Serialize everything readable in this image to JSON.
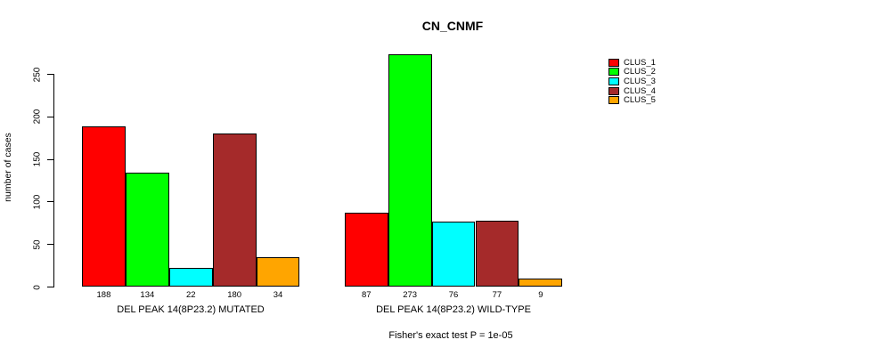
{
  "title": "CN_CNMF",
  "footer": "Fisher's exact test P = 1e-05",
  "chart_data": {
    "type": "bar",
    "title": "CN_CNMF",
    "xlabel": "",
    "ylabel": "number of cases",
    "ylim": [
      0,
      250
    ],
    "yticks": [
      0,
      50,
      100,
      150,
      200,
      250
    ],
    "grid": false,
    "legend_position": "right",
    "bar_values_shown": true,
    "categories": [
      "DEL PEAK 14(8P23.2) MUTATED",
      "DEL PEAK 14(8P23.2) WILD-TYPE"
    ],
    "series": [
      {
        "name": "CLUS_1",
        "color": "#FF0000",
        "values": [
          188,
          87
        ]
      },
      {
        "name": "CLUS_2",
        "color": "#00FF00",
        "values": [
          134,
          273
        ]
      },
      {
        "name": "CLUS_3",
        "color": "#00FFFF",
        "values": [
          22,
          76
        ]
      },
      {
        "name": "CLUS_4",
        "color": "#A52A2A",
        "values": [
          180,
          77
        ]
      },
      {
        "name": "CLUS_5",
        "color": "#FFA500",
        "values": [
          34,
          9
        ]
      }
    ],
    "annotation": "Fisher's exact test P = 1e-05"
  }
}
